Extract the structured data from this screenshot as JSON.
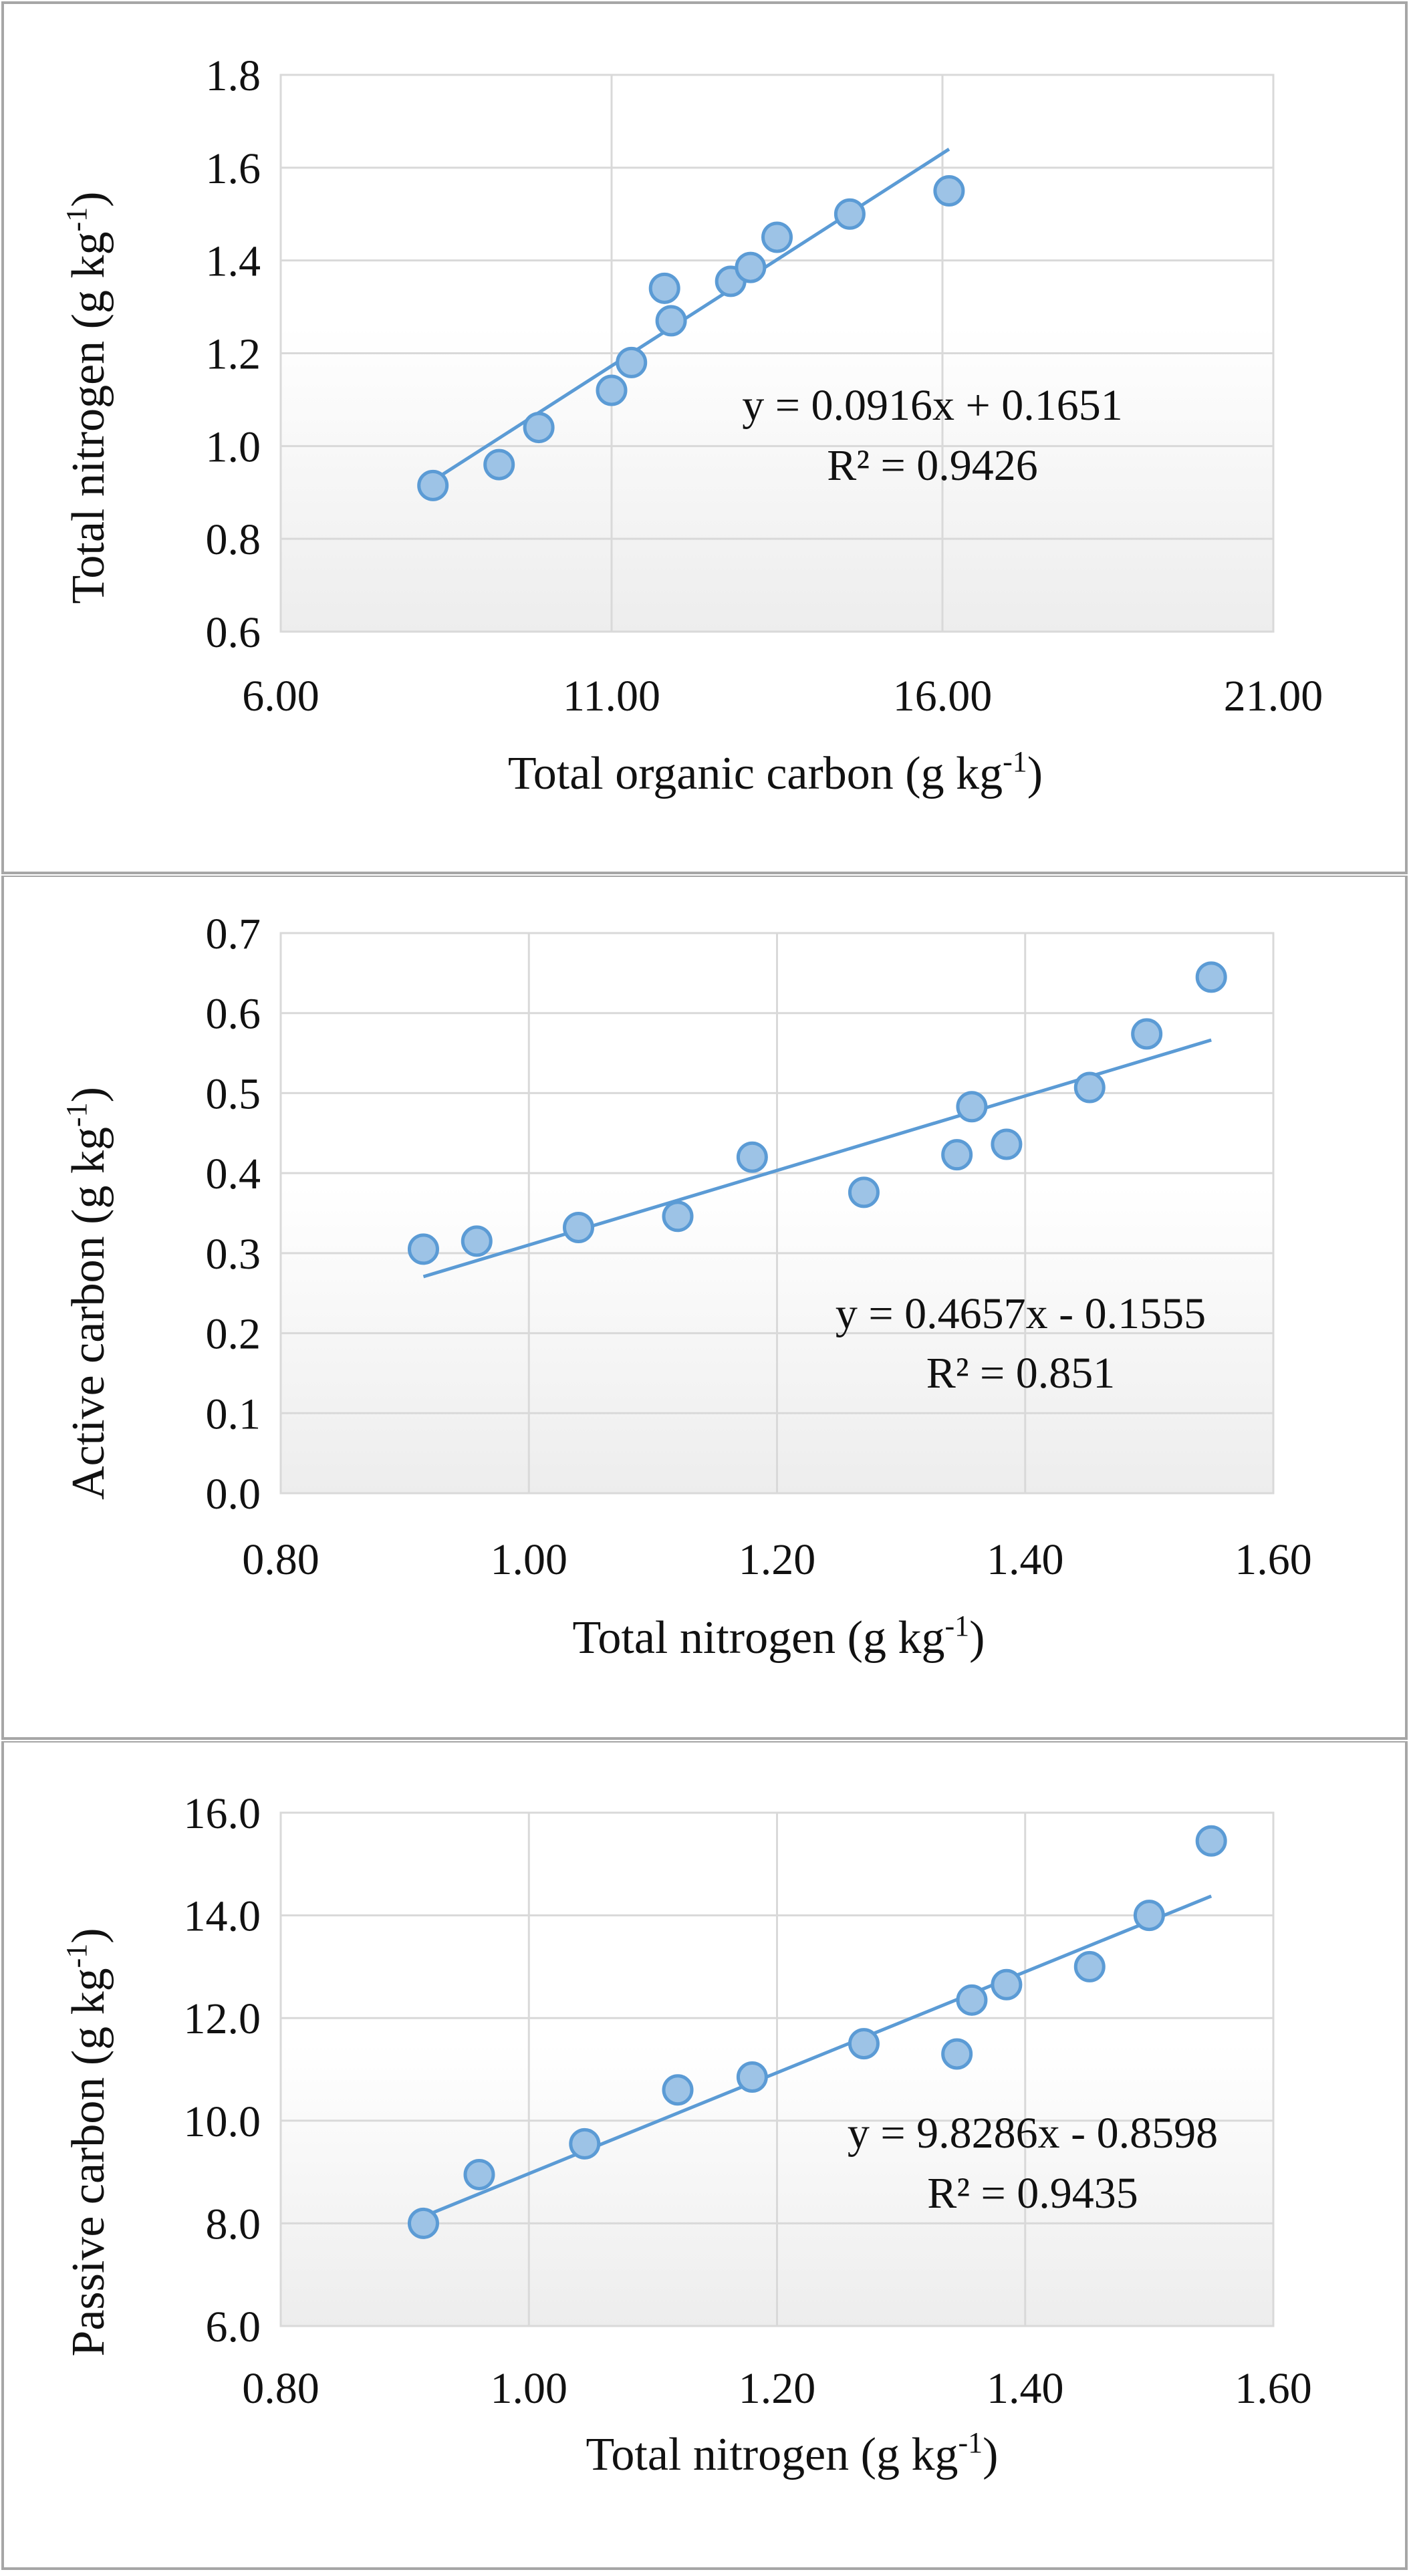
{
  "colors": {
    "marker_fill": "#9DC3E6",
    "marker_stroke": "#5B9BD5",
    "trendline": "#5B9BD5",
    "gridline": "#D9D9D9",
    "frame": "#A6A6A6",
    "plot_bg_top": "#FFFFFF",
    "plot_bg_bottom": "#EDEDED"
  },
  "chart_data": [
    {
      "type": "scatter",
      "xlabel": "Total organic carbon (g kg",
      "xlabel_sup": "-1",
      "xlabel_end": ")",
      "ylabel": "Total nitrogen (g kg",
      "ylabel_sup": "-1",
      "ylabel_end": ")",
      "xlim": [
        6,
        21
      ],
      "ylim": [
        0.6,
        1.8
      ],
      "x_ticks": [
        6,
        11,
        16,
        21
      ],
      "x_tick_labels": [
        "6.00",
        "11.00",
        "16.00",
        "21.00"
      ],
      "y_ticks": [
        0.6,
        0.8,
        1.0,
        1.2,
        1.4,
        1.6,
        1.8
      ],
      "y_tick_labels": [
        "0.6",
        "0.8",
        "1.0",
        "1.2",
        "1.4",
        "1.6",
        "1.8"
      ],
      "x": [
        8.3,
        9.3,
        9.9,
        11.0,
        11.3,
        11.8,
        11.9,
        12.8,
        13.1,
        13.5,
        14.6,
        16.1
      ],
      "y": [
        0.915,
        0.96,
        1.04,
        1.12,
        1.18,
        1.34,
        1.27,
        1.355,
        1.385,
        1.45,
        1.5,
        1.55
      ],
      "trendline": {
        "slope": 0.0916,
        "intercept": 0.1651,
        "x_start": 8.3,
        "x_end": 16.1
      },
      "equation": "y = 0.0916x + 0.1651",
      "r_squared": "R² = 0.9426",
      "grid": true,
      "legend": "none"
    },
    {
      "type": "scatter",
      "xlabel": "Total nitrogen (g kg",
      "xlabel_sup": "-1",
      "xlabel_end": ")",
      "ylabel": "Active carbon (g kg",
      "ylabel_sup": "-1",
      "ylabel_end": ")",
      "xlim": [
        0.8,
        1.6
      ],
      "ylim": [
        0.0,
        0.7
      ],
      "x_ticks": [
        0.8,
        1.0,
        1.2,
        1.4,
        1.6
      ],
      "x_tick_labels": [
        "0.80",
        "1.00",
        "1.20",
        "1.40",
        "1.60"
      ],
      "y_ticks": [
        0.0,
        0.1,
        0.2,
        0.3,
        0.4,
        0.5,
        0.6,
        0.7
      ],
      "y_tick_labels": [
        "0.0",
        "0.1",
        "0.2",
        "0.3",
        "0.4",
        "0.5",
        "0.6",
        "0.7"
      ],
      "x": [
        0.915,
        0.958,
        1.04,
        1.12,
        1.18,
        1.27,
        1.345,
        1.357,
        1.385,
        1.452,
        1.498,
        1.55
      ],
      "y": [
        0.305,
        0.315,
        0.332,
        0.346,
        0.42,
        0.376,
        0.423,
        0.483,
        0.436,
        0.507,
        0.574,
        0.645
      ],
      "trendline": {
        "slope": 0.4657,
        "intercept": -0.1555,
        "x_start": 0.915,
        "x_end": 1.55
      },
      "equation": "y = 0.4657x - 0.1555",
      "r_squared": "R² = 0.851",
      "grid": true,
      "legend": "none"
    },
    {
      "type": "scatter",
      "xlabel": "Total nitrogen (g kg",
      "xlabel_sup": "-1",
      "xlabel_end": ")",
      "ylabel": "Passive carbon (g kg",
      "ylabel_sup": "-1",
      "ylabel_end": ")",
      "xlim": [
        0.8,
        1.6
      ],
      "ylim": [
        6.0,
        16.0
      ],
      "x_ticks": [
        0.8,
        1.0,
        1.2,
        1.4,
        1.6
      ],
      "x_tick_labels": [
        "0.80",
        "1.00",
        "1.20",
        "1.40",
        "1.60"
      ],
      "y_ticks": [
        6.0,
        8.0,
        10.0,
        12.0,
        14.0,
        16.0
      ],
      "y_tick_labels": [
        "6.0",
        "8.0",
        "10.0",
        "12.0",
        "14.0",
        "16.0"
      ],
      "x": [
        0.915,
        0.96,
        1.045,
        1.12,
        1.18,
        1.27,
        1.345,
        1.357,
        1.385,
        1.452,
        1.5,
        1.55
      ],
      "y": [
        8.0,
        8.95,
        9.55,
        10.6,
        10.85,
        11.5,
        11.3,
        12.35,
        12.65,
        13.0,
        14.0,
        15.45
      ],
      "trendline": {
        "slope": 9.8286,
        "intercept": -0.8598,
        "x_start": 0.915,
        "x_end": 1.55
      },
      "equation": "y = 9.8286x - 0.8598",
      "r_squared": "R² = 0.9435",
      "grid": true,
      "legend": "none"
    }
  ]
}
